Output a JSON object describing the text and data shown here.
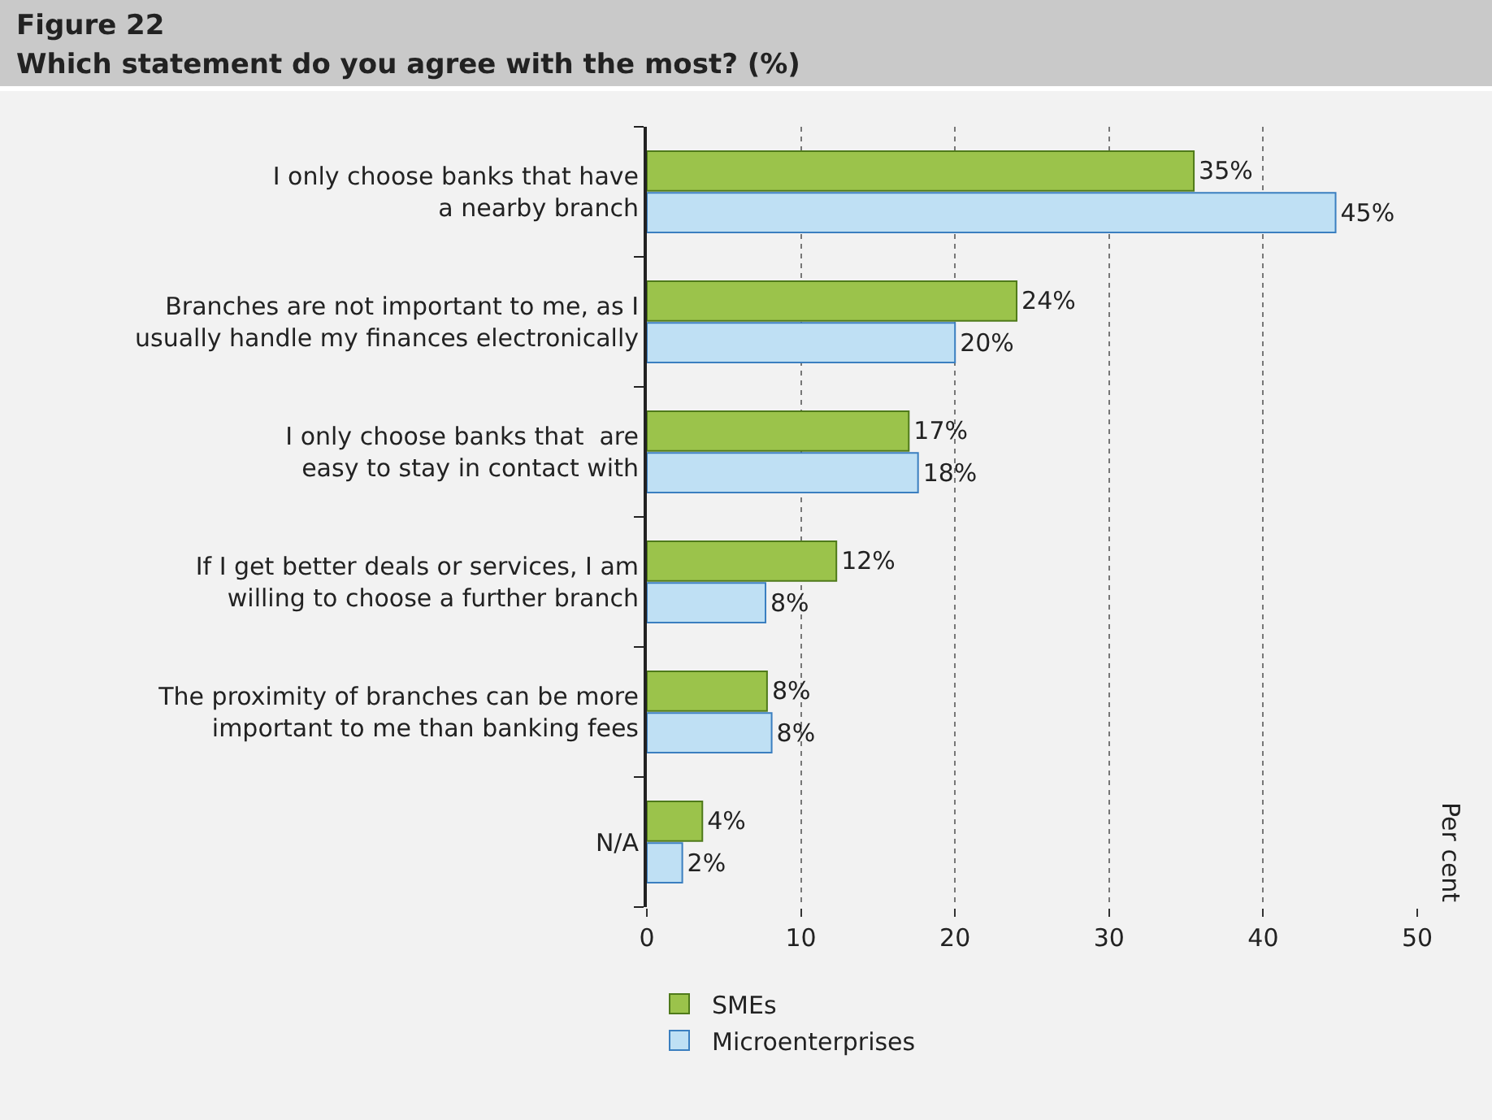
{
  "chart_data": {
    "type": "bar",
    "orientation": "horizontal",
    "title": "Figure 22",
    "subtitle": "Which statement do you agree with the most? (%)",
    "annotations": [
      "Per cent"
    ],
    "categories": [
      "I only choose banks that have\na nearby branch",
      "Branches are not important to me, as I\nusually handle my finances electronically",
      "I only choose banks that  are\neasy to stay in contact with",
      "If I get better deals or services, I am\nwilling to choose a further branch",
      "The proximity of branches can be more\nimportant to me than banking fees",
      "N/A"
    ],
    "series": [
      {
        "name": "SMEs",
        "color": "#9bc34b",
        "values": [
          35.5,
          24,
          17,
          12.3,
          7.8,
          3.6
        ],
        "value_labels": [
          "35%",
          "24%",
          "17%",
          "12%",
          "8%",
          "4%"
        ]
      },
      {
        "name": "Microenterprises",
        "color": "#bfe0f4",
        "values": [
          44.7,
          20,
          17.6,
          7.7,
          8.1,
          2.3
        ],
        "value_labels": [
          "45%",
          "20%",
          "18%",
          "8%",
          "8%",
          "2%"
        ]
      }
    ],
    "xlim": [
      0,
      50
    ],
    "xticks": [
      0,
      10,
      20,
      30,
      40,
      50
    ],
    "grid": "x",
    "legend": "bottom"
  }
}
